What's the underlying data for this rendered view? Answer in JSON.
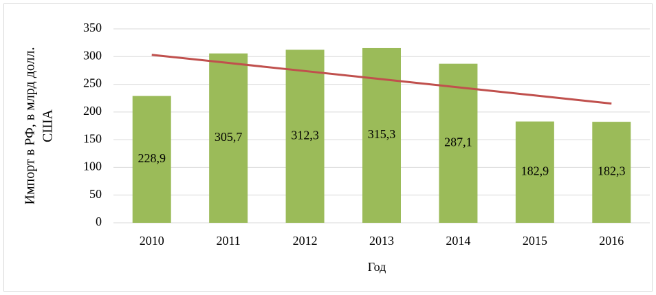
{
  "chart_data": {
    "type": "bar",
    "categories": [
      "2010",
      "2011",
      "2012",
      "2013",
      "2014",
      "2015",
      "2016"
    ],
    "values": [
      228.9,
      305.7,
      312.3,
      315.3,
      287.1,
      182.9,
      182.3
    ],
    "value_labels": [
      "228,9",
      "305,7",
      "312,3",
      "315,3",
      "287,1",
      "182,9",
      "182,3"
    ],
    "color": "#9bbb59",
    "trendline": {
      "values": [
        303.2,
        288.5,
        273.9,
        259.2,
        244.5,
        229.9,
        215.2
      ],
      "color": "#c0504d"
    },
    "ylabel": [
      "Импорт в РФ, в млрд долл.",
      "США"
    ],
    "xlabel": "Год",
    "ylim": [
      0,
      350
    ],
    "yticks": [
      0,
      50,
      100,
      150,
      200,
      250,
      300,
      350
    ],
    "grid": true
  }
}
